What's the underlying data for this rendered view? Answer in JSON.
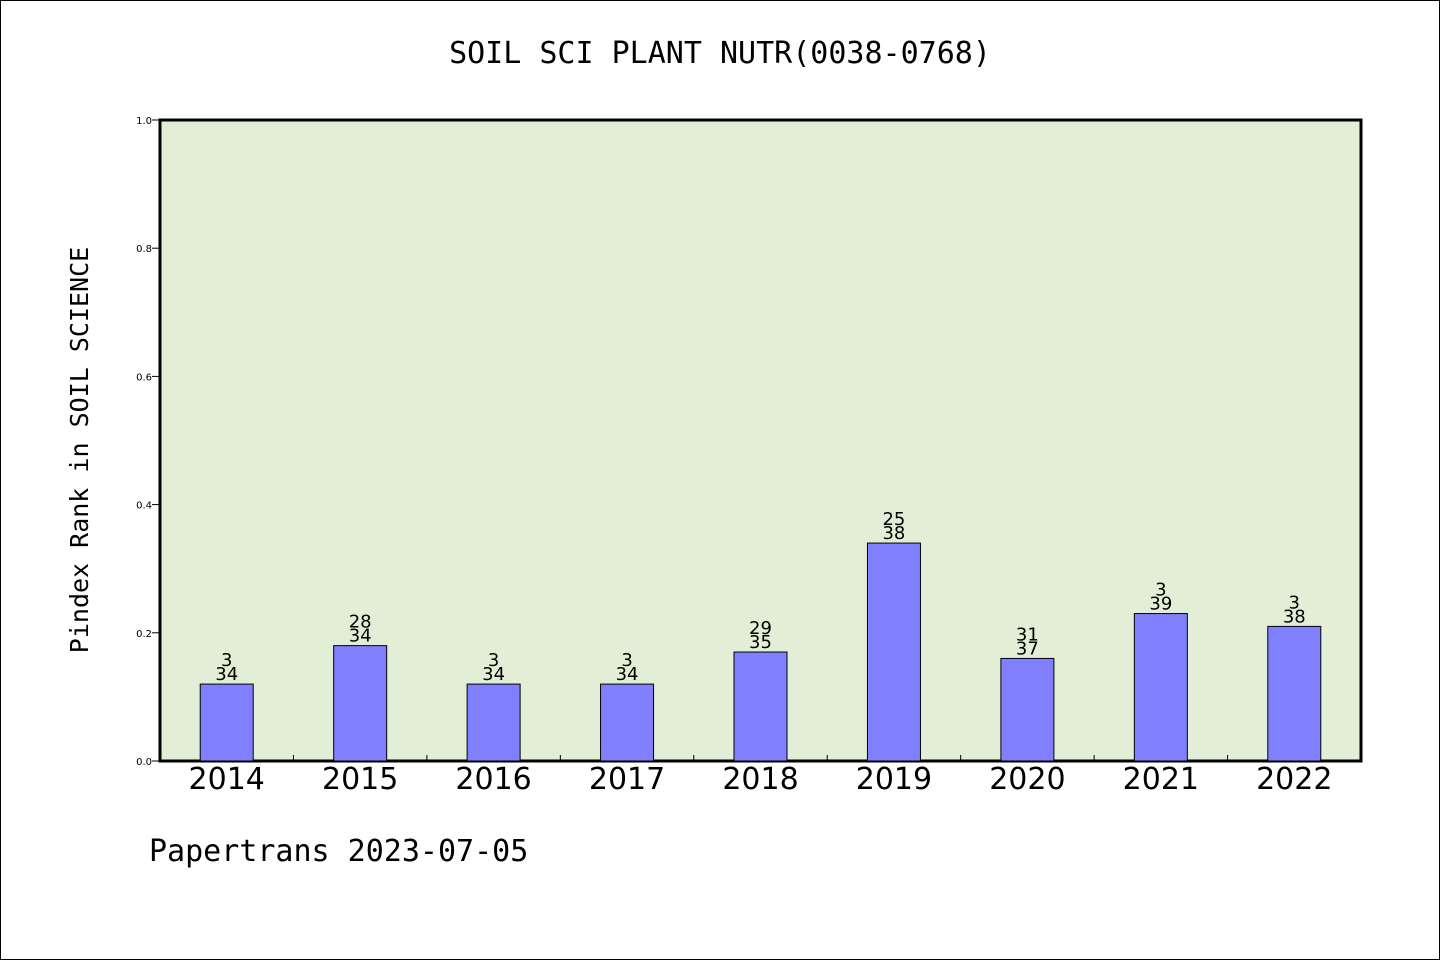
{
  "chart_data": {
    "type": "bar",
    "title": "SOIL SCI PLANT NUTR(0038-0768)",
    "xlabel": "",
    "ylabel": "Pindex Rank in SOIL SCIENCE",
    "categories": [
      "2014",
      "2015",
      "2016",
      "2017",
      "2018",
      "2019",
      "2020",
      "2021",
      "2022"
    ],
    "values": [
      0.12,
      0.18,
      0.12,
      0.12,
      0.17,
      0.34,
      0.16,
      0.23,
      0.21
    ],
    "label_top": [
      "3",
      "28",
      "3",
      "3",
      "29",
      "25",
      "31",
      "3",
      "3"
    ],
    "label_bottom": [
      "34",
      "34",
      "34",
      "34",
      "35",
      "38",
      "37",
      "39",
      "38"
    ],
    "ylim": [
      0,
      1.0
    ],
    "yticks": [
      "0.0",
      "0.2",
      "0.4",
      "0.6",
      "0.8",
      "1.0"
    ],
    "grid": false,
    "colors": {
      "plot_background": "#e2efd6",
      "bar_fill": "#8080ff",
      "bar_stroke": "#000000"
    }
  },
  "footer": {
    "text": "Papertrans 2023-07-05"
  }
}
